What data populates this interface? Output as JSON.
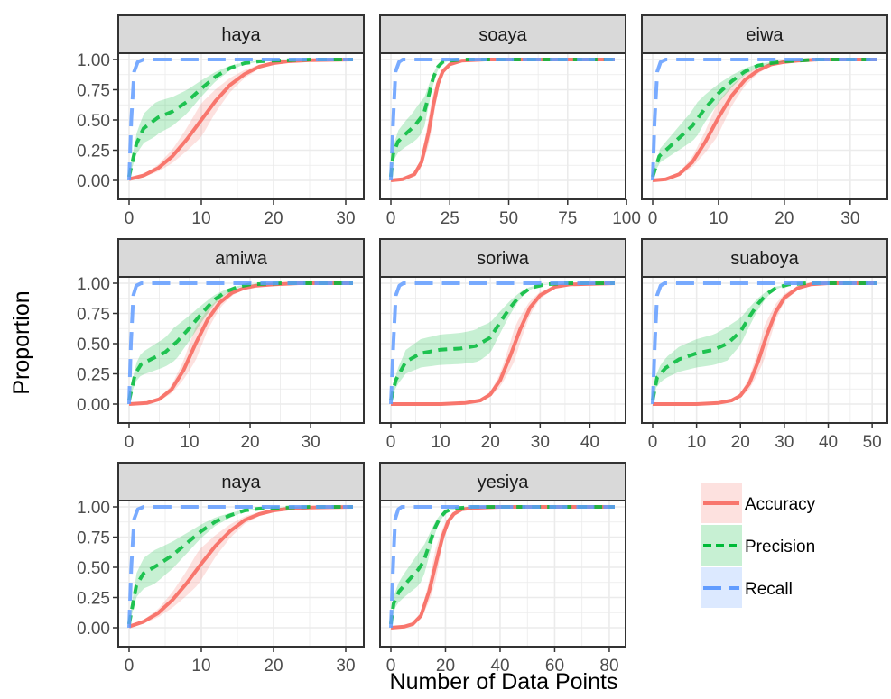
{
  "chart_data": {
    "type": "line",
    "xlabel": "Number of Data Points",
    "ylabel": "Proportion",
    "yticks": [
      "0.00",
      "0.25",
      "0.50",
      "0.75",
      "1.00"
    ],
    "ylim": [
      0,
      1
    ],
    "legend_position": "bottom-right",
    "grid": true,
    "series_styles": [
      {
        "name": "Accuracy",
        "color": "#F8766D",
        "dash": "solid"
      },
      {
        "name": "Precision",
        "color": "#00BA38",
        "dash": "dashed"
      },
      {
        "name": "Recall",
        "color": "#619CFF",
        "dash": "longdash"
      }
    ],
    "facets": [
      {
        "title": "haya",
        "xlim": [
          0,
          31
        ],
        "xticks": [
          0,
          10,
          20,
          30
        ],
        "series": [
          {
            "name": "Accuracy",
            "x": [
              0,
              2,
              4,
              6,
              8,
              10,
              12,
              14,
              16,
              18,
              20,
              22,
              25,
              31
            ],
            "y": [
              0.01,
              0.04,
              0.1,
              0.2,
              0.34,
              0.5,
              0.66,
              0.79,
              0.88,
              0.94,
              0.97,
              0.985,
              0.995,
              1.0
            ]
          },
          {
            "name": "Precision",
            "x": [
              0,
              1,
              2,
              4,
              6,
              8,
              10,
              12,
              14,
              16,
              18,
              20,
              25,
              31
            ],
            "y": [
              0.03,
              0.3,
              0.43,
              0.52,
              0.57,
              0.65,
              0.76,
              0.86,
              0.93,
              0.97,
              0.985,
              0.99,
              1.0,
              1.0
            ]
          },
          {
            "name": "Recall",
            "x": [
              0,
              0.3,
              0.7,
              1.2,
              2,
              31
            ],
            "y": [
              0.0,
              0.5,
              0.9,
              0.98,
              1.0,
              1.0
            ]
          }
        ]
      },
      {
        "title": "soaya",
        "xlim": [
          0,
          95
        ],
        "xticks": [
          0,
          25,
          50,
          75,
          100
        ],
        "series": [
          {
            "name": "Accuracy",
            "x": [
              0,
              5,
              10,
              13,
              16,
              18,
              20,
              22,
              25,
              30,
              40,
              95
            ],
            "y": [
              0.0,
              0.01,
              0.05,
              0.15,
              0.4,
              0.62,
              0.8,
              0.9,
              0.96,
              0.99,
              1.0,
              1.0
            ]
          },
          {
            "name": "Precision",
            "x": [
              0,
              1,
              3,
              6,
              10,
              14,
              16,
              18,
              20,
              22,
              25,
              30,
              95
            ],
            "y": [
              0.03,
              0.22,
              0.32,
              0.38,
              0.45,
              0.55,
              0.7,
              0.85,
              0.94,
              0.98,
              0.99,
              1.0,
              1.0
            ]
          },
          {
            "name": "Recall",
            "x": [
              0,
              1,
              2,
              3.5,
              5,
              95
            ],
            "y": [
              0.0,
              0.5,
              0.9,
              0.98,
              1.0,
              1.0
            ]
          }
        ]
      },
      {
        "title": "eiwa",
        "xlim": [
          0,
          34
        ],
        "xticks": [
          0,
          10,
          20,
          30
        ],
        "series": [
          {
            "name": "Accuracy",
            "x": [
              0,
              2,
              4,
              6,
              8,
              10,
              12,
              14,
              16,
              18,
              20,
              22,
              25,
              34
            ],
            "y": [
              0.0,
              0.01,
              0.05,
              0.15,
              0.32,
              0.52,
              0.7,
              0.83,
              0.91,
              0.96,
              0.98,
              0.99,
              1.0,
              1.0
            ]
          },
          {
            "name": "Precision",
            "x": [
              0,
              1,
              3,
              6,
              8,
              10,
              12,
              14,
              16,
              18,
              20,
              22,
              25,
              34
            ],
            "y": [
              0.03,
              0.2,
              0.3,
              0.45,
              0.6,
              0.72,
              0.82,
              0.9,
              0.95,
              0.97,
              0.985,
              0.99,
              1.0,
              1.0
            ]
          },
          {
            "name": "Recall",
            "x": [
              0,
              0.3,
              0.7,
              1.2,
              2,
              34
            ],
            "y": [
              0.0,
              0.5,
              0.9,
              0.98,
              1.0,
              1.0
            ]
          }
        ]
      },
      {
        "title": "amiwa",
        "xlim": [
          0,
          37
        ],
        "xticks": [
          0,
          10,
          20,
          30
        ],
        "series": [
          {
            "name": "Accuracy",
            "x": [
              0,
              3,
              5,
              7,
              9,
              11,
              13,
              15,
              17,
              19,
              21,
              24,
              28,
              37
            ],
            "y": [
              0.0,
              0.01,
              0.04,
              0.12,
              0.28,
              0.5,
              0.7,
              0.84,
              0.92,
              0.96,
              0.98,
              0.99,
              1.0,
              1.0
            ]
          },
          {
            "name": "Precision",
            "x": [
              0,
              1,
              2,
              4,
              6,
              8,
              10,
              12,
              14,
              16,
              18,
              20,
              25,
              37
            ],
            "y": [
              0.03,
              0.25,
              0.33,
              0.38,
              0.43,
              0.52,
              0.63,
              0.75,
              0.86,
              0.93,
              0.97,
              0.99,
              1.0,
              1.0
            ]
          },
          {
            "name": "Recall",
            "x": [
              0,
              0.3,
              0.7,
              1.2,
              2,
              37
            ],
            "y": [
              0.0,
              0.5,
              0.9,
              0.98,
              1.0,
              1.0
            ]
          }
        ]
      },
      {
        "title": "soriwa",
        "xlim": [
          0,
          45
        ],
        "xticks": [
          0,
          10,
          20,
          30,
          40
        ],
        "series": [
          {
            "name": "Accuracy",
            "x": [
              0,
              10,
              15,
              18,
              20,
              22,
              24,
              26,
              28,
              30,
              33,
              36,
              45
            ],
            "y": [
              0.0,
              0.0,
              0.01,
              0.03,
              0.08,
              0.2,
              0.4,
              0.62,
              0.8,
              0.9,
              0.97,
              0.99,
              1.0
            ]
          },
          {
            "name": "Precision",
            "x": [
              0,
              1,
              3,
              6,
              10,
              14,
              17,
              20,
              22,
              24,
              26,
              28,
              31,
              35,
              45
            ],
            "y": [
              0.03,
              0.2,
              0.35,
              0.42,
              0.45,
              0.46,
              0.48,
              0.55,
              0.68,
              0.8,
              0.9,
              0.96,
              0.99,
              1.0,
              1.0
            ]
          },
          {
            "name": "Recall",
            "x": [
              0,
              0.5,
              1,
              1.7,
              2.5,
              45
            ],
            "y": [
              0.0,
              0.5,
              0.9,
              0.98,
              1.0,
              1.0
            ]
          }
        ]
      },
      {
        "title": "suaboya",
        "xlim": [
          0,
          51
        ],
        "xticks": [
          0,
          10,
          20,
          30,
          40,
          50
        ],
        "series": [
          {
            "name": "Accuracy",
            "x": [
              0,
              10,
              15,
              18,
              20,
              22,
              24,
              26,
              28,
              30,
              33,
              36,
              40,
              51
            ],
            "y": [
              0.0,
              0.0,
              0.01,
              0.03,
              0.07,
              0.17,
              0.35,
              0.57,
              0.76,
              0.88,
              0.96,
              0.99,
              1.0,
              1.0
            ]
          },
          {
            "name": "Precision",
            "x": [
              0,
              1,
              3,
              6,
              10,
              14,
              17,
              20,
              22,
              24,
              26,
              28,
              31,
              35,
              51
            ],
            "y": [
              0.03,
              0.22,
              0.3,
              0.37,
              0.42,
              0.45,
              0.5,
              0.6,
              0.72,
              0.83,
              0.91,
              0.96,
              0.99,
              1.0,
              1.0
            ]
          },
          {
            "name": "Recall",
            "x": [
              0,
              0.5,
              1,
              1.8,
              2.7,
              51
            ],
            "y": [
              0.0,
              0.5,
              0.9,
              0.98,
              1.0,
              1.0
            ]
          }
        ]
      },
      {
        "title": "naya",
        "xlim": [
          0,
          31
        ],
        "xticks": [
          0,
          10,
          20,
          30
        ],
        "series": [
          {
            "name": "Accuracy",
            "x": [
              0,
              2,
              4,
              6,
              8,
              10,
              12,
              14,
              16,
              18,
              20,
              22,
              25,
              31
            ],
            "y": [
              0.01,
              0.05,
              0.12,
              0.23,
              0.37,
              0.53,
              0.68,
              0.8,
              0.89,
              0.94,
              0.97,
              0.985,
              0.995,
              1.0
            ]
          },
          {
            "name": "Precision",
            "x": [
              0,
              1,
              2,
              4,
              6,
              8,
              10,
              12,
              14,
              16,
              18,
              20,
              25,
              31
            ],
            "y": [
              0.03,
              0.35,
              0.45,
              0.52,
              0.6,
              0.7,
              0.8,
              0.88,
              0.93,
              0.97,
              0.985,
              0.99,
              1.0,
              1.0
            ]
          },
          {
            "name": "Recall",
            "x": [
              0,
              0.3,
              0.7,
              1.2,
              2,
              31
            ],
            "y": [
              0.0,
              0.5,
              0.9,
              0.98,
              1.0,
              1.0
            ]
          }
        ]
      },
      {
        "title": "yesiya",
        "xlim": [
          0,
          82
        ],
        "xticks": [
          0,
          20,
          40,
          60,
          80
        ],
        "series": [
          {
            "name": "Accuracy",
            "x": [
              0,
              5,
              8,
              11,
              14,
              17,
              19,
              21,
              23,
              26,
              30,
              40,
              82
            ],
            "y": [
              0.0,
              0.01,
              0.03,
              0.1,
              0.3,
              0.58,
              0.76,
              0.88,
              0.94,
              0.98,
              0.99,
              1.0,
              1.0
            ]
          },
          {
            "name": "Precision",
            "x": [
              0,
              1,
              3,
              6,
              10,
              12,
              14,
              16,
              18,
              20,
              22,
              25,
              30,
              82
            ],
            "y": [
              0.03,
              0.2,
              0.3,
              0.38,
              0.48,
              0.55,
              0.68,
              0.82,
              0.91,
              0.96,
              0.98,
              0.99,
              1.0,
              1.0
            ]
          },
          {
            "name": "Recall",
            "x": [
              0,
              0.8,
              1.6,
              2.7,
              4,
              82
            ],
            "y": [
              0.0,
              0.5,
              0.9,
              0.98,
              1.0,
              1.0
            ]
          }
        ]
      }
    ]
  }
}
